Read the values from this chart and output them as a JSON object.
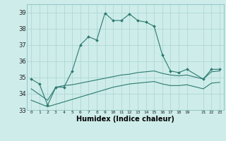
{
  "xlabel": "Humidex (Indice chaleur)",
  "background_color": "#cdecea",
  "grid_color": "#aed8d5",
  "line_color": "#2d7a70",
  "xlim": [
    0,
    23
  ],
  "ylim": [
    33,
    39.5
  ],
  "yticks": [
    33,
    34,
    35,
    36,
    37,
    38,
    39
  ],
  "xtick_positions": [
    0,
    1,
    2,
    3,
    4,
    5,
    6,
    7,
    8,
    9,
    10,
    11,
    12,
    13,
    14,
    15,
    16,
    17,
    18,
    19,
    21,
    22,
    23
  ],
  "xtick_labels": [
    "0",
    "1",
    "2",
    "3",
    "4",
    "5",
    "6",
    "7",
    "8",
    "9",
    "10",
    "11",
    "12",
    "13",
    "14",
    "15",
    "16",
    "17",
    "18",
    "19",
    "21",
    "22",
    "23"
  ],
  "series1_x": [
    0,
    1,
    2,
    3,
    4,
    5,
    6,
    7,
    8,
    9,
    10,
    11,
    12,
    13,
    14,
    15,
    16,
    17,
    18,
    19,
    21,
    22,
    23
  ],
  "series1_y": [
    34.9,
    34.6,
    33.3,
    34.4,
    34.4,
    35.4,
    37.0,
    37.5,
    37.3,
    38.95,
    38.5,
    38.5,
    38.9,
    38.5,
    38.4,
    38.15,
    36.4,
    35.4,
    35.3,
    35.5,
    34.9,
    35.5,
    35.5
  ],
  "series2_x": [
    0,
    2,
    3,
    4,
    5,
    6,
    7,
    8,
    9,
    10,
    11,
    12,
    13,
    14,
    15,
    16,
    17,
    18,
    19,
    21,
    22,
    23
  ],
  "series2_y": [
    34.3,
    33.6,
    34.4,
    34.5,
    34.55,
    34.65,
    34.75,
    34.85,
    34.95,
    35.05,
    35.15,
    35.2,
    35.3,
    35.35,
    35.4,
    35.25,
    35.15,
    35.1,
    35.15,
    34.9,
    35.35,
    35.4
  ],
  "series3_x": [
    0,
    2,
    3,
    4,
    5,
    6,
    7,
    8,
    9,
    10,
    11,
    12,
    13,
    14,
    15,
    16,
    17,
    18,
    19,
    21,
    22,
    23
  ],
  "series3_y": [
    33.6,
    33.2,
    33.35,
    33.5,
    33.65,
    33.8,
    33.95,
    34.1,
    34.25,
    34.4,
    34.5,
    34.6,
    34.65,
    34.7,
    34.75,
    34.6,
    34.5,
    34.5,
    34.55,
    34.3,
    34.65,
    34.7
  ]
}
